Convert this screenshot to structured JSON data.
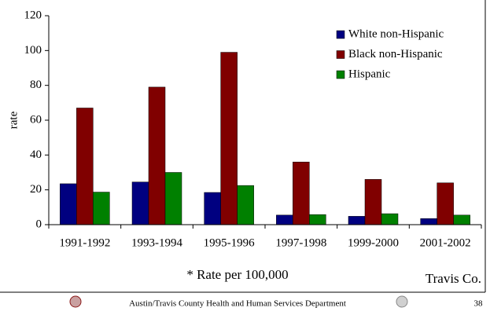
{
  "chart_data": {
    "type": "bar",
    "ylabel": "rate",
    "categories": [
      "1991-1992",
      "1993-1994",
      "1995-1996",
      "1997-1998",
      "1999-2000",
      "2001-2002"
    ],
    "series": [
      {
        "name": "White non-Hispanic",
        "color": "#000080",
        "values": [
          23.5,
          24.5,
          18.5,
          5.5,
          4.8,
          3.5
        ]
      },
      {
        "name": "Black non-Hispanic",
        "color": "#800000",
        "values": [
          67,
          79,
          99,
          36,
          26,
          24
        ]
      },
      {
        "name": "Hispanic",
        "color": "#008000",
        "values": [
          18.7,
          30,
          22.5,
          5.8,
          6.3,
          5.5
        ]
      }
    ],
    "ylim": [
      0,
      120
    ],
    "yticks": [
      0,
      20,
      40,
      60,
      80,
      100,
      120
    ],
    "legend": "upper right",
    "annotations": [
      "* Rate per 100,000",
      "Travis Co."
    ]
  },
  "footer": {
    "text": "Austin/Travis County Health and Human Services Department",
    "page": "38"
  }
}
